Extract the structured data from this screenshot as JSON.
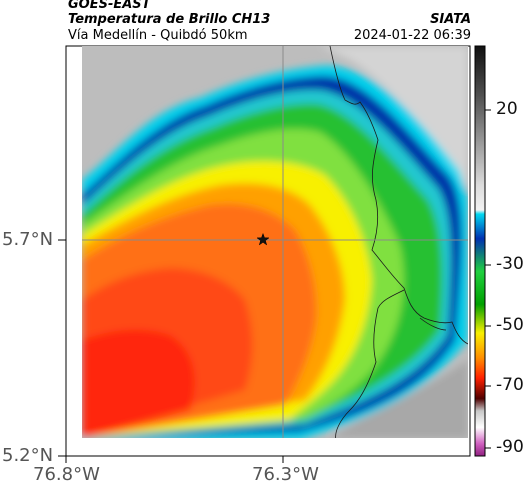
{
  "header": {
    "satellite": "GOES-EAST",
    "product": "Temperatura de Brillo CH13",
    "region": "Vía Medellín - Quibdó 50km",
    "organization": "SIATA",
    "datetime": "2024-01-22 06:39"
  },
  "map": {
    "lat_labels": [
      "5.7°N",
      "5.2°N"
    ],
    "lon_labels": [
      "76.8°W",
      "76.3°W"
    ],
    "marker_icon": "star-icon",
    "gridline_color": "#8a8a8a"
  },
  "colorbar": {
    "ticks": [
      "20",
      "-30",
      "-50",
      "-70",
      "-90"
    ],
    "colors": {
      "warm_gray": "#b8b8b8",
      "cyan": "#00c8e8",
      "blue": "#0028a0",
      "green": "#00b000",
      "yellow": "#f8f000",
      "orange": "#ff7a10",
      "red": "#ff3010",
      "dark_red": "#500000",
      "magenta": "#c040b0"
    }
  }
}
